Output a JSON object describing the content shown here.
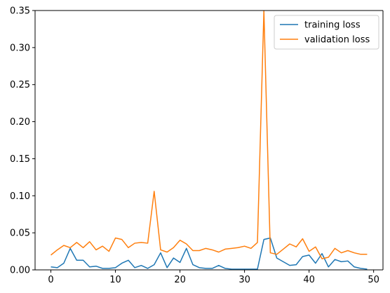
{
  "chart_data": {
    "type": "line",
    "x": [
      0,
      1,
      2,
      3,
      4,
      5,
      6,
      7,
      8,
      9,
      10,
      11,
      12,
      13,
      14,
      15,
      16,
      17,
      18,
      19,
      20,
      21,
      22,
      23,
      24,
      25,
      26,
      27,
      28,
      29,
      30,
      31,
      32,
      33,
      34,
      35,
      36,
      37,
      38,
      39,
      40,
      41,
      42,
      43,
      44,
      45,
      46,
      47,
      48,
      49
    ],
    "series": [
      {
        "name": "training loss",
        "color": "#1f77b4",
        "values": [
          0.004,
          0.003,
          0.009,
          0.029,
          0.013,
          0.013,
          0.004,
          0.005,
          0.002,
          0.002,
          0.003,
          0.009,
          0.013,
          0.003,
          0.006,
          0.002,
          0.007,
          0.023,
          0.003,
          0.016,
          0.01,
          0.029,
          0.007,
          0.003,
          0.002,
          0.002,
          0.006,
          0.002,
          0.001,
          0.001,
          0.001,
          0.001,
          0.001,
          0.041,
          0.043,
          0.016,
          0.011,
          0.006,
          0.007,
          0.018,
          0.02,
          0.009,
          0.022,
          0.004,
          0.014,
          0.011,
          0.012,
          0.004,
          0.002,
          0.001
        ]
      },
      {
        "name": "validation loss",
        "color": "#ff7f0e",
        "values": [
          0.02,
          0.027,
          0.033,
          0.03,
          0.037,
          0.03,
          0.038,
          0.027,
          0.032,
          0.025,
          0.043,
          0.041,
          0.03,
          0.036,
          0.037,
          0.036,
          0.106,
          0.027,
          0.024,
          0.03,
          0.04,
          0.035,
          0.026,
          0.026,
          0.029,
          0.027,
          0.024,
          0.028,
          0.029,
          0.03,
          0.032,
          0.029,
          0.037,
          0.35,
          0.023,
          0.021,
          0.028,
          0.035,
          0.031,
          0.042,
          0.025,
          0.031,
          0.015,
          0.017,
          0.029,
          0.023,
          0.026,
          0.023,
          0.021,
          0.021
        ]
      }
    ],
    "xlim": [
      -2.45,
      51.45
    ],
    "ylim": [
      0,
      0.35
    ],
    "xticks": [
      0,
      10,
      20,
      30,
      40,
      50
    ],
    "xtick_labels": [
      "0",
      "10",
      "20",
      "30",
      "40",
      "50"
    ],
    "yticks": [
      0,
      0.05,
      0.1,
      0.15,
      0.2,
      0.25,
      0.3,
      0.35
    ],
    "ytick_labels": [
      "0.00",
      "0.05",
      "0.10",
      "0.15",
      "0.20",
      "0.25",
      "0.30",
      "0.35"
    ],
    "grid": false,
    "legend": "top-right",
    "title": "",
    "xlabel": "",
    "ylabel": ""
  }
}
